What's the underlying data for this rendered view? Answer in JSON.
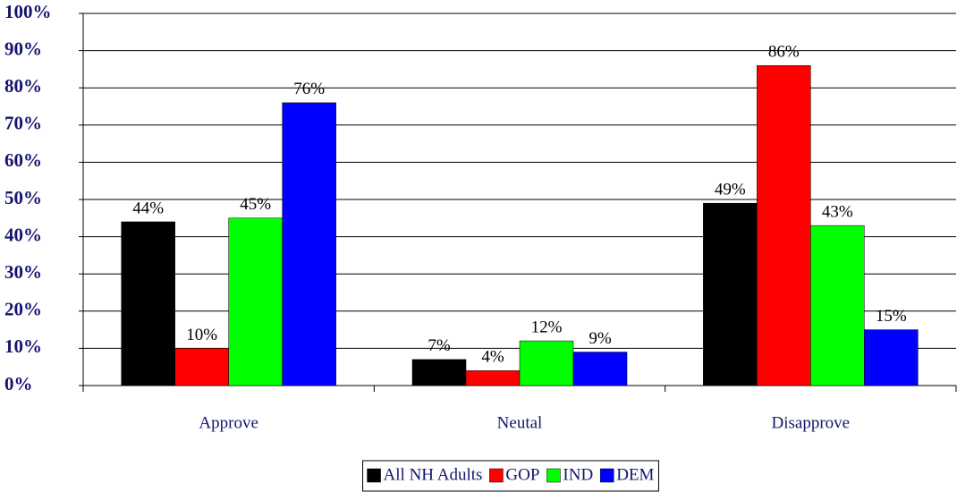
{
  "chart_data": {
    "type": "bar",
    "categories": [
      "Approve",
      "Neutal",
      "Disapprove"
    ],
    "series": [
      {
        "name": "All NH Adults",
        "color": "#000000",
        "values": [
          44,
          7,
          49
        ],
        "value_labels": [
          "44%",
          "7%",
          "49%"
        ]
      },
      {
        "name": "GOP",
        "color": "#ff0000",
        "values": [
          10,
          4,
          86
        ],
        "value_labels": [
          "10%",
          "4%",
          "86%"
        ]
      },
      {
        "name": "IND",
        "color": "#00ff00",
        "values": [
          45,
          12,
          43
        ],
        "value_labels": [
          "45%",
          "12%",
          "43%"
        ]
      },
      {
        "name": "DEM",
        "color": "#0000ff",
        "values": [
          76,
          9,
          15
        ],
        "value_labels": [
          "76%",
          "9%",
          "15%"
        ]
      }
    ],
    "ylim": [
      0,
      100
    ],
    "yticks": [
      {
        "value": 0,
        "label": "0%"
      },
      {
        "value": 10,
        "label": "10%"
      },
      {
        "value": 20,
        "label": "20%"
      },
      {
        "value": 30,
        "label": "30%"
      },
      {
        "value": 40,
        "label": "40%"
      },
      {
        "value": 50,
        "label": "50%"
      },
      {
        "value": 60,
        "label": "60%"
      },
      {
        "value": 70,
        "label": "70%"
      },
      {
        "value": 80,
        "label": "80%"
      },
      {
        "value": 90,
        "label": "90%"
      },
      {
        "value": 100,
        "label": "100%"
      }
    ],
    "grid": true,
    "legend": "bottom"
  }
}
